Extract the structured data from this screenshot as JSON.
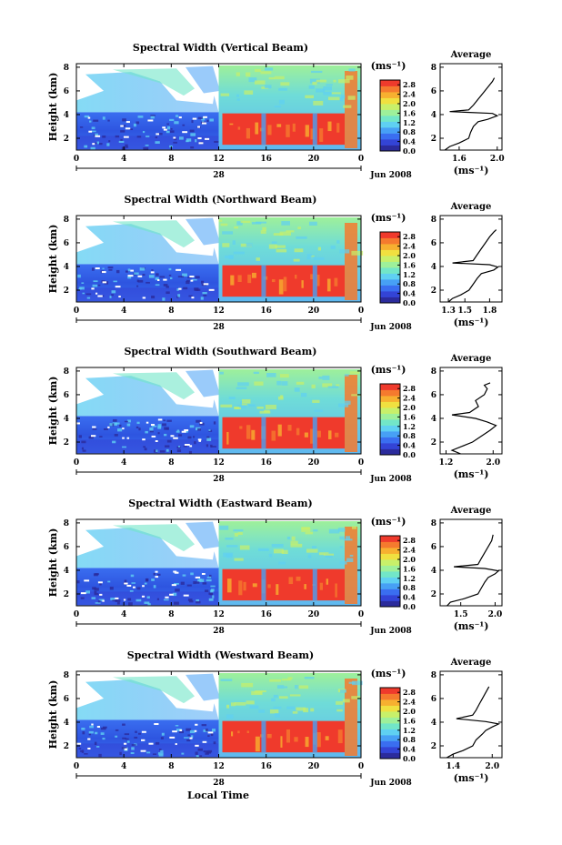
{
  "chart_data": {
    "type": "heatmap",
    "panels": [
      {
        "title": "Spectral Width (Vertical Beam)",
        "avg_xticks": [
          "1.6",
          "2.0"
        ],
        "avg_xlim": [
          1.4,
          2.05
        ],
        "avg_profile": [
          [
            1.45,
            1.0
          ],
          [
            1.5,
            1.3
          ],
          [
            1.6,
            1.6
          ],
          [
            1.7,
            2.0
          ],
          [
            1.72,
            2.5
          ],
          [
            1.75,
            3.0
          ],
          [
            1.8,
            3.4
          ],
          [
            1.9,
            3.6
          ],
          [
            2.0,
            3.9
          ],
          [
            1.95,
            4.1
          ],
          [
            1.5,
            4.25
          ],
          [
            1.7,
            4.4
          ],
          [
            1.75,
            4.8
          ],
          [
            1.8,
            5.3
          ],
          [
            1.85,
            5.8
          ],
          [
            1.9,
            6.3
          ],
          [
            1.95,
            6.8
          ],
          [
            1.97,
            7.1
          ]
        ]
      },
      {
        "title": "Spectral Width (Northward Beam)",
        "avg_xticks": [
          "1.3",
          "1.5",
          "1.8"
        ],
        "avg_xlim": [
          1.2,
          1.95
        ],
        "avg_profile": [
          [
            1.3,
            1.0
          ],
          [
            1.35,
            1.3
          ],
          [
            1.45,
            1.6
          ],
          [
            1.55,
            2.0
          ],
          [
            1.6,
            2.5
          ],
          [
            1.65,
            3.0
          ],
          [
            1.7,
            3.4
          ],
          [
            1.85,
            3.7
          ],
          [
            1.9,
            3.95
          ],
          [
            1.8,
            4.15
          ],
          [
            1.35,
            4.3
          ],
          [
            1.6,
            4.5
          ],
          [
            1.65,
            5.0
          ],
          [
            1.7,
            5.5
          ],
          [
            1.75,
            6.0
          ],
          [
            1.8,
            6.5
          ],
          [
            1.85,
            6.9
          ],
          [
            1.88,
            7.1
          ]
        ]
      },
      {
        "title": "Spectral Width (Southward Beam)",
        "avg_xticks": [
          "1.2",
          "2.0"
        ],
        "avg_xlim": [
          1.1,
          2.15
        ],
        "avg_profile": [
          [
            1.45,
            1.0
          ],
          [
            1.3,
            1.3
          ],
          [
            1.45,
            1.6
          ],
          [
            1.65,
            2.0
          ],
          [
            1.8,
            2.5
          ],
          [
            1.95,
            3.0
          ],
          [
            2.05,
            3.4
          ],
          [
            1.9,
            3.7
          ],
          [
            1.7,
            4.0
          ],
          [
            1.3,
            4.3
          ],
          [
            1.6,
            4.5
          ],
          [
            1.75,
            5.0
          ],
          [
            1.7,
            5.5
          ],
          [
            1.85,
            6.0
          ],
          [
            1.9,
            6.5
          ],
          [
            1.85,
            6.8
          ],
          [
            1.95,
            7.0
          ]
        ]
      },
      {
        "title": "Spectral Width (Eastward Beam)",
        "avg_xticks": [
          "1.5",
          "2.0"
        ],
        "avg_xlim": [
          1.2,
          2.1
        ],
        "avg_profile": [
          [
            1.3,
            1.0
          ],
          [
            1.35,
            1.3
          ],
          [
            1.55,
            1.6
          ],
          [
            1.75,
            2.0
          ],
          [
            1.8,
            2.5
          ],
          [
            1.85,
            3.0
          ],
          [
            1.9,
            3.4
          ],
          [
            2.0,
            3.7
          ],
          [
            2.05,
            3.95
          ],
          [
            1.85,
            4.15
          ],
          [
            1.4,
            4.3
          ],
          [
            1.75,
            4.5
          ],
          [
            1.8,
            5.0
          ],
          [
            1.85,
            5.5
          ],
          [
            1.9,
            6.0
          ],
          [
            1.95,
            6.5
          ],
          [
            1.97,
            7.0
          ]
        ]
      },
      {
        "title": "Spectral Width (Westward Beam)",
        "avg_xticks": [
          "1.4",
          "2.0"
        ],
        "avg_xlim": [
          1.2,
          2.15
        ],
        "avg_profile": [
          [
            1.3,
            1.0
          ],
          [
            1.4,
            1.3
          ],
          [
            1.55,
            1.6
          ],
          [
            1.7,
            2.0
          ],
          [
            1.75,
            2.5
          ],
          [
            1.85,
            3.0
          ],
          [
            1.9,
            3.3
          ],
          [
            2.0,
            3.6
          ],
          [
            2.1,
            3.85
          ],
          [
            1.9,
            4.05
          ],
          [
            1.45,
            4.3
          ],
          [
            1.7,
            4.6
          ],
          [
            1.75,
            5.0
          ],
          [
            1.8,
            5.5
          ],
          [
            1.85,
            6.0
          ],
          [
            1.9,
            6.5
          ],
          [
            1.95,
            7.0
          ]
        ]
      }
    ],
    "xlabel": "Local Time",
    "ylabel": "Height (km)",
    "x_ticks": [
      "0",
      "4",
      "8",
      "12",
      "16",
      "20",
      "0"
    ],
    "xlim": [
      0,
      24
    ],
    "y_ticks": [
      "2",
      "4",
      "6",
      "8"
    ],
    "ylim": [
      1,
      8.3
    ],
    "date_day": "28",
    "date_label": "Jun 2008",
    "colorbar_unit": "(ms⁻¹)",
    "colorbar_ticks": [
      "0.0",
      "0.4",
      "0.8",
      "1.2",
      "1.6",
      "2.0",
      "2.4",
      "2.8"
    ],
    "colorbar_range": [
      0,
      3.0
    ],
    "colorbar_colors": [
      "#2b2b9c",
      "#3344d6",
      "#3a6ef0",
      "#47a0f5",
      "#5fd0f2",
      "#72e6c8",
      "#9ef09a",
      "#c8f06a",
      "#f0e040",
      "#f7b030",
      "#f57a2e",
      "#ef3a2c"
    ],
    "avg_title": "Average",
    "avg_unit": "(ms⁻¹)",
    "avg_yticks": [
      "2",
      "4",
      "6",
      "8"
    ],
    "avg_ylim": [
      1,
      8.3
    ]
  }
}
